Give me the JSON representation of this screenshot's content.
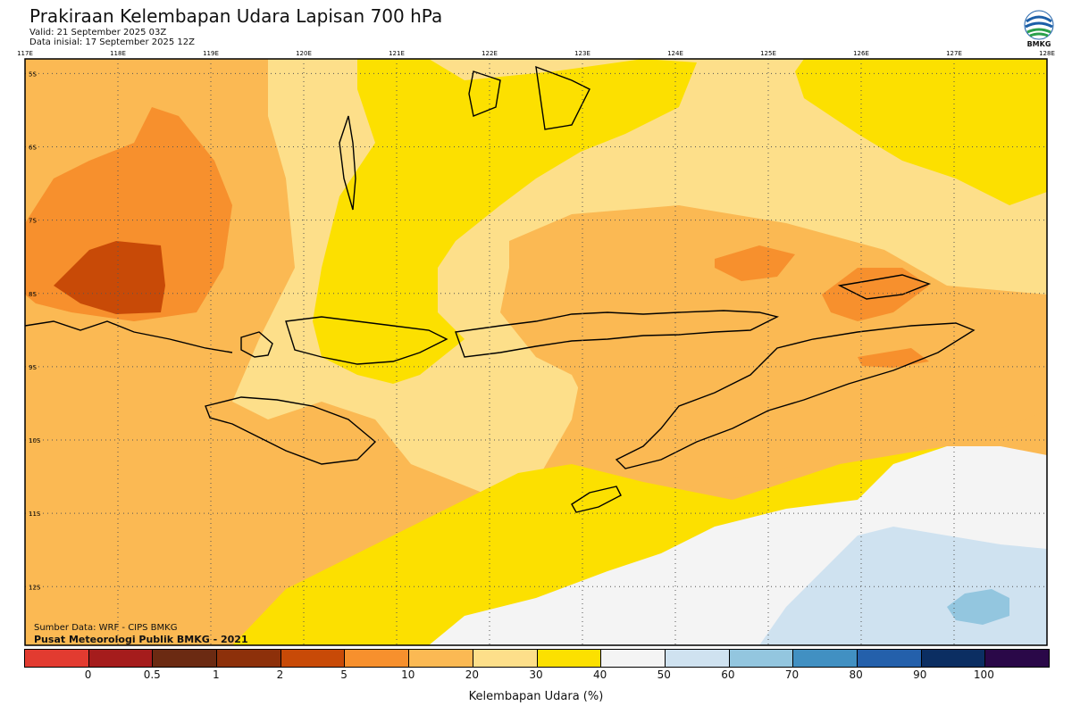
{
  "header": {
    "title": "Prakiraan Kelembapan Udara Lapisan 700 hPa",
    "valid": "Valid: 21 September 2025 03Z",
    "initial": "Data inisial: 17 September 2025 12Z"
  },
  "logo": {
    "text": "BMKG",
    "icon": "bmkg-logo-icon"
  },
  "map": {
    "lon_labels": [
      "117E",
      "118E",
      "119E",
      "120E",
      "121E",
      "122E",
      "123E",
      "124E",
      "125E",
      "126E",
      "127E",
      "128E"
    ],
    "lat_labels": [
      "5S",
      "6S",
      "7S",
      "8S",
      "9S",
      "10S",
      "11S",
      "12S"
    ],
    "lon_range": [
      117,
      128
    ],
    "lat_range": [
      -4.8,
      -12.8
    ],
    "grid": "dotted",
    "field_colors": {
      "orange_dark": "#c84a07",
      "orange": "#f7902d",
      "orange_light": "#fbb953",
      "tan": "#fddf8a",
      "yellow": "#fce000",
      "white": "#f4f4f4",
      "blue_light": "#cfe2f0",
      "blue": "#93c6df"
    }
  },
  "footer": {
    "source": "Sumber Data: WRF - CIPS BMKG",
    "publisher": "Pusat Meteorologi Publik BMKG - 2021"
  },
  "colorbar": {
    "colors": [
      "#e23b30",
      "#a51c1c",
      "#6b2a12",
      "#8d300a",
      "#c84a07",
      "#f7902d",
      "#fbb953",
      "#fddf8a",
      "#fce000",
      "#f4f4f4",
      "#cfe2f0",
      "#93c6df",
      "#4190c2",
      "#2460ab",
      "#0b2e62",
      "#2a0848"
    ],
    "ticks": [
      "0",
      "0.5",
      "1",
      "2",
      "5",
      "10",
      "20",
      "30",
      "40",
      "50",
      "60",
      "70",
      "80",
      "90",
      "100"
    ],
    "label": "Kelembapan Udara (%)"
  }
}
